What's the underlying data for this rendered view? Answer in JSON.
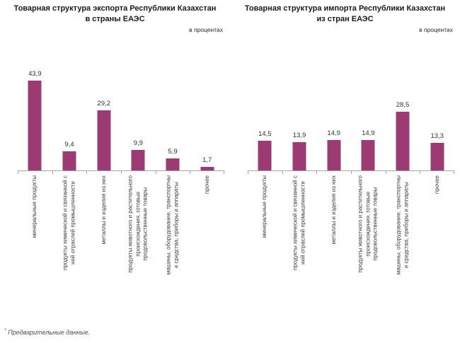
{
  "footnote": {
    "marker": "*",
    "text": " Предварительные данные."
  },
  "colors": {
    "bar": "#9b3a73",
    "axis": "#a6a6a6",
    "title_text": "#1a1a1a",
    "value_text": "#303030",
    "category_text": "#3f3f3f",
    "footnote_text": "#4d4d4d"
  },
  "chart_data": [
    {
      "type": "bar",
      "title": "Товарная структура экспорта Республики Казахстан\nв страны ЕАЭС",
      "unit": "в процентах",
      "categories": [
        "минеральные продукты",
        "продукты химической и связанной с\nней отраслей промышленности",
        "металлы и изделия из них",
        "продукты животного и растительного\nпроисхождения, готовые\nпродовольственные товары",
        "машины, оборудование, транспортны\nе средства, приборы и аппараты",
        "прочее"
      ],
      "values": [
        43.9,
        9.4,
        29.2,
        9.9,
        5.9,
        1.7
      ],
      "value_labels": [
        "43,9",
        "9,4",
        "29,2",
        "9,9",
        "5,9",
        "1,7"
      ],
      "xlabel": "",
      "ylabel": "",
      "ylim": [
        0,
        50
      ],
      "grid": false,
      "legend": "none"
    },
    {
      "type": "bar",
      "title": "Товарная структура импорта Республики Казахстан\nиз стран ЕАЭС",
      "unit": "в процентах",
      "categories": [
        "минеральные продукты",
        "продукты химической и связанной с\nней отраслей промышленности",
        "металлы и изделия из них",
        "продукты животного и растительного\nпроисхождения, готовые\nпродовольственные товары",
        "машины, оборудование, транспортны\nе средства, приборы и аппараты",
        "прочее"
      ],
      "values": [
        14.5,
        13.9,
        14.9,
        14.9,
        28.5,
        13.3
      ],
      "value_labels": [
        "14,5",
        "13,9",
        "14,9",
        "14,9",
        "28,5",
        "13,3"
      ],
      "xlabel": "",
      "ylabel": "",
      "ylim": [
        0,
        50
      ],
      "grid": false,
      "legend": "none"
    }
  ]
}
